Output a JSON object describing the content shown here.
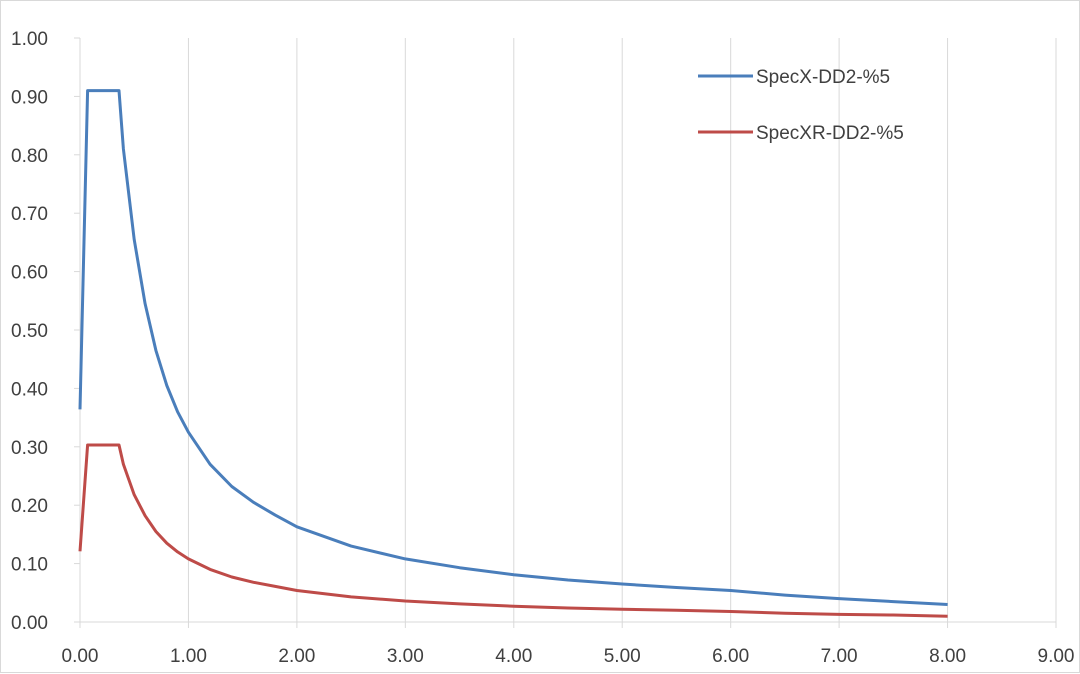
{
  "chart_data": {
    "type": "line",
    "title": "",
    "xlabel": "",
    "ylabel": "",
    "xlim": [
      0,
      9
    ],
    "ylim": [
      0,
      1
    ],
    "x_ticks": [
      0,
      1,
      2,
      3,
      4,
      5,
      6,
      7,
      8,
      9
    ],
    "x_tick_labels": [
      "0.00",
      "1.00",
      "2.00",
      "3.00",
      "4.00",
      "5.00",
      "6.00",
      "7.00",
      "8.00",
      "9.00"
    ],
    "y_ticks": [
      0,
      0.1,
      0.2,
      0.3,
      0.4,
      0.5,
      0.6,
      0.7,
      0.8,
      0.9,
      1.0
    ],
    "y_tick_labels": [
      "0.00",
      "0.10",
      "0.20",
      "0.30",
      "0.40",
      "0.50",
      "0.60",
      "0.70",
      "0.80",
      "0.90",
      "1.00"
    ],
    "grid": "vertical",
    "legend_position": "top-right",
    "series": [
      {
        "name": "SpecX-DD2-%5",
        "color": "#4a7ebb",
        "points": [
          [
            0.0,
            0.364
          ],
          [
            0.07,
            0.91
          ],
          [
            0.2,
            0.91
          ],
          [
            0.36,
            0.91
          ],
          [
            0.4,
            0.81
          ],
          [
            0.5,
            0.655
          ],
          [
            0.6,
            0.545
          ],
          [
            0.7,
            0.465
          ],
          [
            0.8,
            0.405
          ],
          [
            0.9,
            0.36
          ],
          [
            1.0,
            0.325
          ],
          [
            1.2,
            0.27
          ],
          [
            1.4,
            0.232
          ],
          [
            1.6,
            0.205
          ],
          [
            1.8,
            0.183
          ],
          [
            2.0,
            0.163
          ],
          [
            2.5,
            0.13
          ],
          [
            3.0,
            0.108
          ],
          [
            3.5,
            0.093
          ],
          [
            4.0,
            0.081
          ],
          [
            4.5,
            0.072
          ],
          [
            5.0,
            0.065
          ],
          [
            5.5,
            0.059
          ],
          [
            6.0,
            0.054
          ],
          [
            6.5,
            0.046
          ],
          [
            7.0,
            0.04
          ],
          [
            7.5,
            0.035
          ],
          [
            8.0,
            0.03
          ]
        ]
      },
      {
        "name": "SpecXR-DD2-%5",
        "color": "#be4b48",
        "points": [
          [
            0.0,
            0.121
          ],
          [
            0.07,
            0.303
          ],
          [
            0.2,
            0.303
          ],
          [
            0.36,
            0.303
          ],
          [
            0.4,
            0.27
          ],
          [
            0.5,
            0.218
          ],
          [
            0.6,
            0.182
          ],
          [
            0.7,
            0.155
          ],
          [
            0.8,
            0.135
          ],
          [
            0.9,
            0.12
          ],
          [
            1.0,
            0.108
          ],
          [
            1.2,
            0.09
          ],
          [
            1.4,
            0.077
          ],
          [
            1.6,
            0.068
          ],
          [
            1.8,
            0.061
          ],
          [
            2.0,
            0.054
          ],
          [
            2.5,
            0.043
          ],
          [
            3.0,
            0.036
          ],
          [
            3.5,
            0.031
          ],
          [
            4.0,
            0.027
          ],
          [
            4.5,
            0.024
          ],
          [
            5.0,
            0.022
          ],
          [
            5.5,
            0.02
          ],
          [
            6.0,
            0.018
          ],
          [
            6.5,
            0.015
          ],
          [
            7.0,
            0.013
          ],
          [
            7.5,
            0.012
          ],
          [
            8.0,
            0.01
          ]
        ]
      }
    ]
  }
}
